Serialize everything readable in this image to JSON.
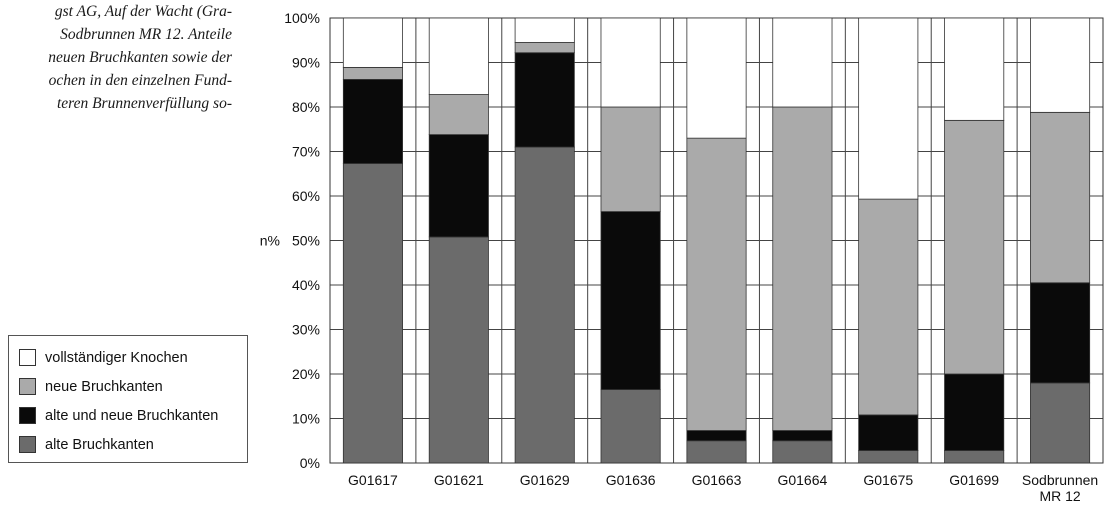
{
  "caption": {
    "lines": [
      "gst AG, Auf der Wacht (Gra-",
      "Sodbrunnen MR 12. Anteile",
      "neuen Bruchkanten sowie der",
      "ochen in den einzelnen Fund-",
      "teren Brunnenverfüllung so-"
    ]
  },
  "chart_data": {
    "type": "bar",
    "stacked": true,
    "ylabel": "n%",
    "ylim": [
      0,
      100
    ],
    "yticks": [
      "0%",
      "10%",
      "20%",
      "30%",
      "40%",
      "50%",
      "60%",
      "70%",
      "80%",
      "90%",
      "100%"
    ],
    "categories": [
      "G01617",
      "G01621",
      "G01629",
      "G01636",
      "G01663",
      "G01664",
      "G01675",
      "G01699",
      "Sodbrunnen MR 12"
    ],
    "category_label_lines": [
      [
        "G01617"
      ],
      [
        "G01621"
      ],
      [
        "G01629"
      ],
      [
        "G01636"
      ],
      [
        "G01663"
      ],
      [
        "G01664"
      ],
      [
        "G01675"
      ],
      [
        "G01699"
      ],
      [
        "Sodbrunnen",
        "MR 12"
      ]
    ],
    "series": [
      {
        "name": "alte Bruchkanten",
        "color": "#6b6b6b",
        "values": [
          67.3,
          50.8,
          71.0,
          16.5,
          5.0,
          5.0,
          2.8,
          2.8,
          18.0
        ]
      },
      {
        "name": "alte und neue Bruchkanten",
        "color": "#0a0a0a",
        "values": [
          18.9,
          23.0,
          21.2,
          40.0,
          2.3,
          2.3,
          8.0,
          17.2,
          22.5
        ]
      },
      {
        "name": "neue Bruchkanten",
        "color": "#aaaaaa",
        "values": [
          2.7,
          9.0,
          2.3,
          23.5,
          65.7,
          72.7,
          48.5,
          57.0,
          38.3
        ]
      },
      {
        "name": "vollständiger Knochen",
        "color": "#ffffff",
        "values": [
          11.1,
          17.2,
          5.5,
          20.0,
          27.0,
          20.0,
          40.7,
          23.0,
          21.2
        ]
      }
    ],
    "legend": {
      "position": "left",
      "order": [
        "vollständiger Knochen",
        "neue Bruchkanten",
        "alte und neue Bruchkanten",
        "alte Bruchkanten"
      ]
    },
    "grid": true
  }
}
